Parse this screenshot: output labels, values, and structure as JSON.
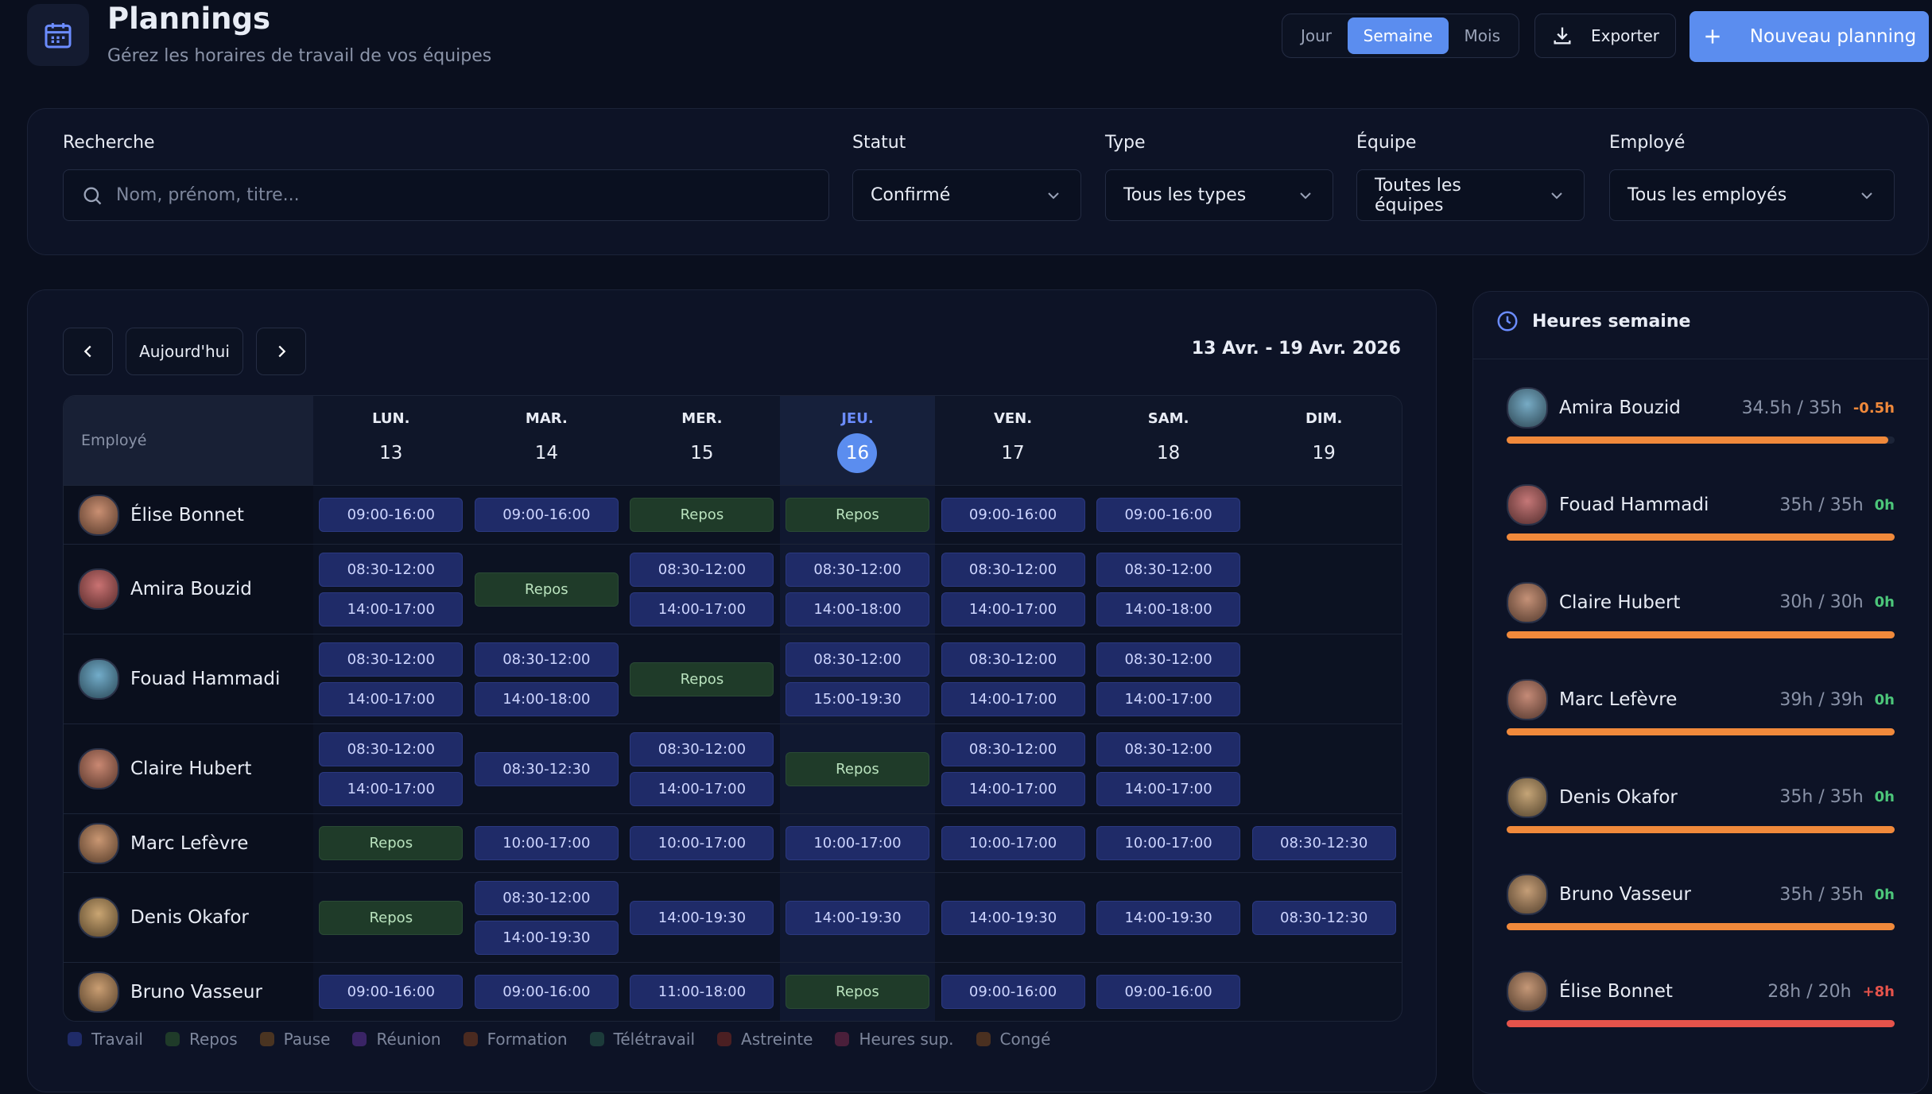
{
  "header": {
    "title": "Plannings",
    "subtitle": "Gérez les horaires de travail de vos équipes"
  },
  "view_toggle": {
    "options": [
      "Jour",
      "Semaine",
      "Mois"
    ],
    "active": "Semaine"
  },
  "actions": {
    "export": "Exporter",
    "new": "Nouveau planning"
  },
  "filters": [
    {
      "label": "Recherche",
      "placeholder": "Nom, prénom, titre..."
    },
    {
      "label": "Statut",
      "value": "Confirmé"
    },
    {
      "label": "Type",
      "value": "Tous les types"
    },
    {
      "label": "Équipe",
      "value": "Toutes les équipes"
    },
    {
      "label": "Employé",
      "value": "Tous les employés"
    }
  ],
  "calendar": {
    "today_button": "Aujourd'hui",
    "range": "13 Avr. - 19 Avr. 2026",
    "employee_header": "Employé",
    "days": [
      {
        "name": "LUN.",
        "date": 13
      },
      {
        "name": "MAR.",
        "date": 14
      },
      {
        "name": "MER.",
        "date": 15
      },
      {
        "name": "JEU.",
        "date": 16,
        "highlight": true
      },
      {
        "name": "VEN.",
        "date": 17
      },
      {
        "name": "SAM.",
        "date": 18
      },
      {
        "name": "DIM.",
        "date": 19
      }
    ],
    "rows": [
      {
        "employee": "Élise Bonnet",
        "cells": [
          [
            {
              "kind": "work",
              "label": "09:00-16:00"
            }
          ],
          [
            {
              "kind": "work",
              "label": "09:00-16:00"
            }
          ],
          [
            {
              "kind": "rest",
              "label": "Repos"
            }
          ],
          [
            {
              "kind": "rest",
              "label": "Repos"
            }
          ],
          [
            {
              "kind": "work",
              "label": "09:00-16:00"
            }
          ],
          [
            {
              "kind": "work",
              "label": "09:00-16:00"
            }
          ],
          []
        ]
      },
      {
        "employee": "Amira Bouzid",
        "cells": [
          [
            {
              "kind": "work",
              "label": "08:30-12:00"
            },
            {
              "kind": "work",
              "label": "14:00-17:00"
            }
          ],
          [
            {
              "kind": "rest",
              "label": "Repos"
            }
          ],
          [
            {
              "kind": "work",
              "label": "08:30-12:00"
            },
            {
              "kind": "work",
              "label": "14:00-17:00"
            }
          ],
          [
            {
              "kind": "work",
              "label": "08:30-12:00"
            },
            {
              "kind": "work",
              "label": "14:00-18:00"
            }
          ],
          [
            {
              "kind": "work",
              "label": "08:30-12:00"
            },
            {
              "kind": "work",
              "label": "14:00-17:00"
            }
          ],
          [
            {
              "kind": "work",
              "label": "08:30-12:00"
            },
            {
              "kind": "work",
              "label": "14:00-18:00"
            }
          ],
          []
        ]
      },
      {
        "employee": "Fouad Hammadi",
        "cells": [
          [
            {
              "kind": "work",
              "label": "08:30-12:00"
            },
            {
              "kind": "work",
              "label": "14:00-17:00"
            }
          ],
          [
            {
              "kind": "work",
              "label": "08:30-12:00"
            },
            {
              "kind": "work",
              "label": "14:00-18:00"
            }
          ],
          [
            {
              "kind": "rest",
              "label": "Repos"
            }
          ],
          [
            {
              "kind": "work",
              "label": "08:30-12:00"
            },
            {
              "kind": "work",
              "label": "15:00-19:30"
            }
          ],
          [
            {
              "kind": "work",
              "label": "08:30-12:00"
            },
            {
              "kind": "work",
              "label": "14:00-17:00"
            }
          ],
          [
            {
              "kind": "work",
              "label": "08:30-12:00"
            },
            {
              "kind": "work",
              "label": "14:00-17:00"
            }
          ],
          []
        ]
      },
      {
        "employee": "Claire Hubert",
        "cells": [
          [
            {
              "kind": "work",
              "label": "08:30-12:00"
            },
            {
              "kind": "work",
              "label": "14:00-17:00"
            }
          ],
          [
            {
              "kind": "work",
              "label": "08:30-12:30"
            }
          ],
          [
            {
              "kind": "work",
              "label": "08:30-12:00"
            },
            {
              "kind": "work",
              "label": "14:00-17:00"
            }
          ],
          [
            {
              "kind": "rest",
              "label": "Repos"
            }
          ],
          [
            {
              "kind": "work",
              "label": "08:30-12:00"
            },
            {
              "kind": "work",
              "label": "14:00-17:00"
            }
          ],
          [
            {
              "kind": "work",
              "label": "08:30-12:00"
            },
            {
              "kind": "work",
              "label": "14:00-17:00"
            }
          ],
          []
        ]
      },
      {
        "employee": "Marc Lefèvre",
        "cells": [
          [
            {
              "kind": "rest",
              "label": "Repos"
            }
          ],
          [
            {
              "kind": "work",
              "label": "10:00-17:00"
            }
          ],
          [
            {
              "kind": "work",
              "label": "10:00-17:00"
            }
          ],
          [
            {
              "kind": "work",
              "label": "10:00-17:00"
            }
          ],
          [
            {
              "kind": "work",
              "label": "10:00-17:00"
            }
          ],
          [
            {
              "kind": "work",
              "label": "10:00-17:00"
            }
          ],
          [
            {
              "kind": "work",
              "label": "08:30-12:30"
            }
          ]
        ]
      },
      {
        "employee": "Denis Okafor",
        "cells": [
          [
            {
              "kind": "rest",
              "label": "Repos"
            }
          ],
          [
            {
              "kind": "work",
              "label": "08:30-12:00"
            },
            {
              "kind": "work",
              "label": "14:00-19:30"
            }
          ],
          [
            {
              "kind": "work",
              "label": "14:00-19:30"
            }
          ],
          [
            {
              "kind": "work",
              "label": "14:00-19:30"
            }
          ],
          [
            {
              "kind": "work",
              "label": "14:00-19:30"
            }
          ],
          [
            {
              "kind": "work",
              "label": "14:00-19:30"
            }
          ],
          [
            {
              "kind": "work",
              "label": "08:30-12:30"
            }
          ]
        ]
      },
      {
        "employee": "Bruno Vasseur",
        "cells": [
          [
            {
              "kind": "work",
              "label": "09:00-16:00"
            }
          ],
          [
            {
              "kind": "work",
              "label": "09:00-16:00"
            }
          ],
          [
            {
              "kind": "work",
              "label": "11:00-18:00"
            }
          ],
          [
            {
              "kind": "rest",
              "label": "Repos"
            }
          ],
          [
            {
              "kind": "work",
              "label": "09:00-16:00"
            }
          ],
          [
            {
              "kind": "work",
              "label": "09:00-16:00"
            }
          ],
          []
        ]
      }
    ]
  },
  "legend": [
    {
      "label": "Travail",
      "color": "#1f2b68"
    },
    {
      "label": "Repos",
      "color": "#1f3b29"
    },
    {
      "label": "Pause",
      "color": "#4a3421"
    },
    {
      "label": "Réunion",
      "color": "#3a2466"
    },
    {
      "label": "Formation",
      "color": "#4a2a20"
    },
    {
      "label": "Télétravail",
      "color": "#1c3b3a"
    },
    {
      "label": "Astreinte",
      "color": "#4b1f22"
    },
    {
      "label": "Heures sup.",
      "color": "#4a1f3a"
    },
    {
      "label": "Congé",
      "color": "#4a3020"
    }
  ],
  "hours": {
    "title": "Heures semaine",
    "rows": [
      {
        "name": "Amira Bouzid",
        "hours": "34.5h / 35h",
        "delta": "-0.5h",
        "color": "#f0893b"
      },
      {
        "name": "Fouad Hammadi",
        "hours": "35h / 35h",
        "delta": "0h",
        "color": "#4cc67a"
      },
      {
        "name": "Claire Hubert",
        "hours": "30h / 30h",
        "delta": "0h",
        "color": "#4cc67a"
      },
      {
        "name": "Marc Lefèvre",
        "hours": "39h / 39h",
        "delta": "0h",
        "color": "#4cc67a"
      },
      {
        "name": "Denis Okafor",
        "hours": "35h / 35h",
        "delta": "0h",
        "color": "#4cc67a"
      },
      {
        "name": "Bruno Vasseur",
        "hours": "35h / 35h",
        "delta": "0h",
        "color": "#4cc67a"
      },
      {
        "name": "Élise Bonnet",
        "hours": "28h / 20h",
        "delta": "+8h",
        "color": "#e5534b"
      }
    ]
  }
}
